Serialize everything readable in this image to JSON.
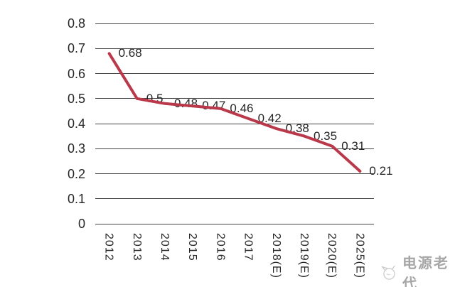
{
  "chart_data": {
    "type": "line",
    "title": "",
    "xlabel": "",
    "ylabel": "",
    "categories": [
      "2012",
      "2013",
      "2014",
      "2015",
      "2016",
      "2017",
      "2018(E)",
      "2019(E)",
      "2020(E)",
      "2025(E)"
    ],
    "values": [
      0.68,
      0.5,
      0.48,
      0.47,
      0.46,
      0.42,
      0.38,
      0.35,
      0.31,
      0.21
    ],
    "data_labels": [
      "0.68",
      "0.5",
      "0.48",
      "0.47",
      "0.46",
      "0.42",
      "0.38",
      "0.35",
      "0.31",
      "0.21"
    ],
    "yticks": [
      "0.8",
      "0.7",
      "0.6",
      "0.5",
      "0.4",
      "0.3",
      "0.2",
      "0.1",
      "0"
    ],
    "ylim": [
      0,
      0.8
    ],
    "grid": true,
    "legend": "none",
    "line_color": "#b9394a",
    "grid_color": "#454545",
    "label_color": "#262626"
  },
  "watermark": {
    "text": "电源老代"
  }
}
